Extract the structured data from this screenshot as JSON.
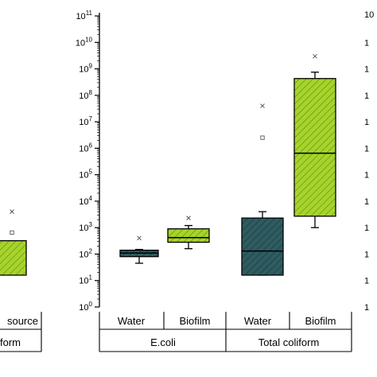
{
  "chart_data": {
    "type": "box",
    "y_scale": "log10",
    "ylim": [
      1,
      100000000000
    ],
    "y_tick_labels": [
      {
        "base": "10",
        "exp": "0"
      },
      {
        "base": "10",
        "exp": "1"
      },
      {
        "base": "10",
        "exp": "2"
      },
      {
        "base": "10",
        "exp": "3"
      },
      {
        "base": "10",
        "exp": "4"
      },
      {
        "base": "10",
        "exp": "5"
      },
      {
        "base": "10",
        "exp": "6"
      },
      {
        "base": "10",
        "exp": "7"
      },
      {
        "base": "10",
        "exp": "8"
      },
      {
        "base": "10",
        "exp": "9"
      },
      {
        "base": "10",
        "exp": "10"
      },
      {
        "base": "10",
        "exp": "11"
      }
    ],
    "groups": [
      "E.coli",
      "Total coliform"
    ],
    "categories": [
      "Water",
      "Biofilm",
      "Water",
      "Biofilm"
    ],
    "boxes": [
      {
        "group": "E.coli",
        "label": "Water",
        "fill": "#2e5c61",
        "whisker_low": 45,
        "q1": 80,
        "median": 110,
        "q3": 140,
        "whisker_high": 150,
        "mean": null,
        "outlier": 400
      },
      {
        "group": "E.coli",
        "label": "Biofilm",
        "fill": "#a6d42c",
        "whisker_low": 160,
        "q1": 280,
        "median": 420,
        "q3": 900,
        "whisker_high": 1200,
        "mean": null,
        "outlier": 2300
      },
      {
        "group": "Total coliform",
        "label": "Water",
        "fill": "#2e5c61",
        "whisker_low": 16,
        "q1": 16,
        "median": 130,
        "q3": 2300,
        "whisker_high": 4000,
        "mean": 2500000,
        "outlier": 40000000
      },
      {
        "group": "Total coliform",
        "label": "Biofilm",
        "fill": "#a6d42c",
        "whisker_low": 1000,
        "q1": 2700,
        "median": 650000,
        "q3": 430000000,
        "whisker_high": 750000000,
        "mean": null,
        "outlier": 3000000000
      }
    ],
    "left_partial": {
      "category_fragment": "source",
      "group_fragment": "form",
      "box_fill": "#a6d42c",
      "q1": 16,
      "q3": 320,
      "mean": 650,
      "outlier": 4000
    },
    "right_partial": {
      "tick_fragments": [
        "10",
        "1",
        "1",
        "1",
        "1",
        "1",
        "1",
        "1",
        "1",
        "1",
        "1",
        "1"
      ]
    }
  }
}
